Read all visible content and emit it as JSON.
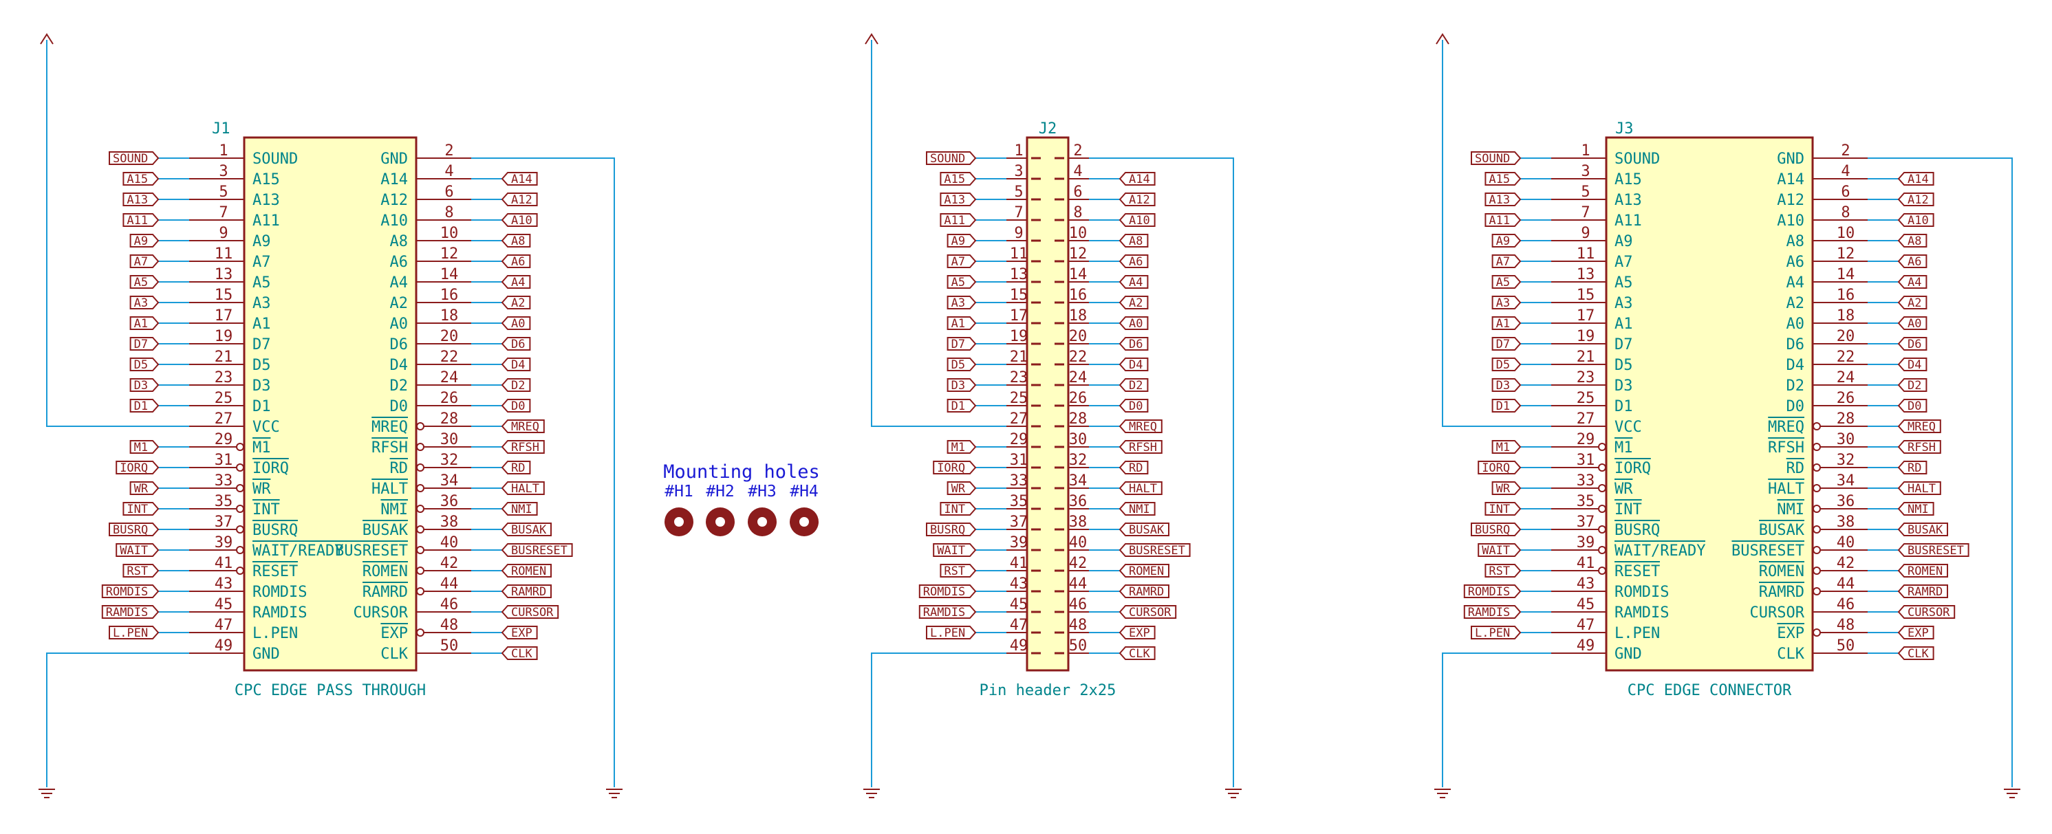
{
  "colors": {
    "wire": "#1a9bd7",
    "body_stroke": "#8b1c1c",
    "body_fill": "#ffffc2",
    "pin": "#8b1c1c",
    "ref_text": "#00848b",
    "value_text": "#00848b",
    "net_label": "#8b1c1c",
    "title_text": "#1a1ad4",
    "hole": "#8b1c1c",
    "background": "#ffffff"
  },
  "connectors": [
    {
      "ref": "J1",
      "value": "CPC EDGE PASS THROUGH",
      "style": "edge",
      "left_pins": [
        {
          "num": "1",
          "name": "SOUND",
          "net": "SOUND"
        },
        {
          "num": "3",
          "name": "A15",
          "net": "A15"
        },
        {
          "num": "5",
          "name": "A13",
          "net": "A13"
        },
        {
          "num": "7",
          "name": "A11",
          "net": "A11"
        },
        {
          "num": "9",
          "name": "A9",
          "net": "A9"
        },
        {
          "num": "11",
          "name": "A7",
          "net": "A7"
        },
        {
          "num": "13",
          "name": "A5",
          "net": "A5"
        },
        {
          "num": "15",
          "name": "A3",
          "net": "A3"
        },
        {
          "num": "17",
          "name": "A1",
          "net": "A1"
        },
        {
          "num": "19",
          "name": "D7",
          "net": "D7"
        },
        {
          "num": "21",
          "name": "D5",
          "net": "D5"
        },
        {
          "num": "23",
          "name": "D3",
          "net": "D3"
        },
        {
          "num": "25",
          "name": "D1",
          "net": "D1"
        },
        {
          "num": "27",
          "name": "VCC",
          "net": ""
        },
        {
          "num": "29",
          "name": "M1",
          "net": "M1",
          "inv": true
        },
        {
          "num": "31",
          "name": "IORQ",
          "net": "IORQ",
          "inv": true
        },
        {
          "num": "33",
          "name": "WR",
          "net": "WR",
          "inv": true
        },
        {
          "num": "35",
          "name": "INT",
          "net": "INT",
          "inv": true
        },
        {
          "num": "37",
          "name": "BUSRQ",
          "net": "BUSRQ",
          "inv": true
        },
        {
          "num": "39",
          "name": "WAIT/READY",
          "net": "WAIT",
          "inv": true
        },
        {
          "num": "41",
          "name": "RESET",
          "net": "RST",
          "inv": true
        },
        {
          "num": "43",
          "name": "ROMDIS",
          "net": "ROMDIS"
        },
        {
          "num": "45",
          "name": "RAMDIS",
          "net": "RAMDIS"
        },
        {
          "num": "47",
          "name": "L.PEN",
          "net": "L.PEN"
        },
        {
          "num": "49",
          "name": "GND",
          "net": ""
        }
      ],
      "right_pins": [
        {
          "num": "2",
          "name": "GND",
          "net": ""
        },
        {
          "num": "4",
          "name": "A14",
          "net": "A14"
        },
        {
          "num": "6",
          "name": "A12",
          "net": "A12"
        },
        {
          "num": "8",
          "name": "A10",
          "net": "A10"
        },
        {
          "num": "10",
          "name": "A8",
          "net": "A8"
        },
        {
          "num": "12",
          "name": "A6",
          "net": "A6"
        },
        {
          "num": "14",
          "name": "A4",
          "net": "A4"
        },
        {
          "num": "16",
          "name": "A2",
          "net": "A2"
        },
        {
          "num": "18",
          "name": "A0",
          "net": "A0"
        },
        {
          "num": "20",
          "name": "D6",
          "net": "D6"
        },
        {
          "num": "22",
          "name": "D4",
          "net": "D4"
        },
        {
          "num": "24",
          "name": "D2",
          "net": "D2"
        },
        {
          "num": "26",
          "name": "D0",
          "net": "D0"
        },
        {
          "num": "28",
          "name": "MREQ",
          "net": "MREQ",
          "inv": true
        },
        {
          "num": "30",
          "name": "RFSH",
          "net": "RFSH",
          "inv": true
        },
        {
          "num": "32",
          "name": "RD",
          "net": "RD",
          "inv": true
        },
        {
          "num": "34",
          "name": "HALT",
          "net": "HALT",
          "inv": true
        },
        {
          "num": "36",
          "name": "NMI",
          "net": "NMI",
          "inv": true
        },
        {
          "num": "38",
          "name": "BUSAK",
          "net": "BUSAK",
          "inv": true
        },
        {
          "num": "40",
          "name": "BUSRESET",
          "net": "BUSRESET",
          "inv": true
        },
        {
          "num": "42",
          "name": "ROMEN",
          "net": "ROMEN",
          "inv": true
        },
        {
          "num": "44",
          "name": "RAMRD",
          "net": "RAMRD",
          "inv": true
        },
        {
          "num": "46",
          "name": "CURSOR",
          "net": "CURSOR"
        },
        {
          "num": "48",
          "name": "EXP",
          "net": "EXP",
          "inv": true
        },
        {
          "num": "50",
          "name": "CLK",
          "net": "CLK"
        }
      ]
    },
    {
      "ref": "J2",
      "value": "Pin header 2x25",
      "style": "header",
      "left_pins": [
        {
          "num": "1",
          "name": "",
          "net": "SOUND"
        },
        {
          "num": "3",
          "name": "",
          "net": "A15"
        },
        {
          "num": "5",
          "name": "",
          "net": "A13"
        },
        {
          "num": "7",
          "name": "",
          "net": "A11"
        },
        {
          "num": "9",
          "name": "",
          "net": "A9"
        },
        {
          "num": "11",
          "name": "",
          "net": "A7"
        },
        {
          "num": "13",
          "name": "",
          "net": "A5"
        },
        {
          "num": "15",
          "name": "",
          "net": "A3"
        },
        {
          "num": "17",
          "name": "",
          "net": "A1"
        },
        {
          "num": "19",
          "name": "",
          "net": "D7"
        },
        {
          "num": "21",
          "name": "",
          "net": "D5"
        },
        {
          "num": "23",
          "name": "",
          "net": "D3"
        },
        {
          "num": "25",
          "name": "",
          "net": "D1"
        },
        {
          "num": "27",
          "name": "",
          "net": ""
        },
        {
          "num": "29",
          "name": "",
          "net": "M1"
        },
        {
          "num": "31",
          "name": "",
          "net": "IORQ"
        },
        {
          "num": "33",
          "name": "",
          "net": "WR"
        },
        {
          "num": "35",
          "name": "",
          "net": "INT"
        },
        {
          "num": "37",
          "name": "",
          "net": "BUSRQ"
        },
        {
          "num": "39",
          "name": "",
          "net": "WAIT"
        },
        {
          "num": "41",
          "name": "",
          "net": "RST"
        },
        {
          "num": "43",
          "name": "",
          "net": "ROMDIS"
        },
        {
          "num": "45",
          "name": "",
          "net": "RAMDIS"
        },
        {
          "num": "47",
          "name": "",
          "net": "L.PEN"
        },
        {
          "num": "49",
          "name": "",
          "net": ""
        }
      ],
      "right_pins": [
        {
          "num": "2",
          "name": "",
          "net": ""
        },
        {
          "num": "4",
          "name": "",
          "net": "A14"
        },
        {
          "num": "6",
          "name": "",
          "net": "A12"
        },
        {
          "num": "8",
          "name": "",
          "net": "A10"
        },
        {
          "num": "10",
          "name": "",
          "net": "A8"
        },
        {
          "num": "12",
          "name": "",
          "net": "A6"
        },
        {
          "num": "14",
          "name": "",
          "net": "A4"
        },
        {
          "num": "16",
          "name": "",
          "net": "A2"
        },
        {
          "num": "18",
          "name": "",
          "net": "A0"
        },
        {
          "num": "20",
          "name": "",
          "net": "D6"
        },
        {
          "num": "22",
          "name": "",
          "net": "D4"
        },
        {
          "num": "24",
          "name": "",
          "net": "D2"
        },
        {
          "num": "26",
          "name": "",
          "net": "D0"
        },
        {
          "num": "28",
          "name": "",
          "net": "MREQ"
        },
        {
          "num": "30",
          "name": "",
          "net": "RFSH"
        },
        {
          "num": "32",
          "name": "",
          "net": "RD"
        },
        {
          "num": "34",
          "name": "",
          "net": "HALT"
        },
        {
          "num": "36",
          "name": "",
          "net": "NMI"
        },
        {
          "num": "38",
          "name": "",
          "net": "BUSAK"
        },
        {
          "num": "40",
          "name": "",
          "net": "BUSRESET"
        },
        {
          "num": "42",
          "name": "",
          "net": "ROMEN"
        },
        {
          "num": "44",
          "name": "",
          "net": "RAMRD"
        },
        {
          "num": "46",
          "name": "",
          "net": "CURSOR"
        },
        {
          "num": "48",
          "name": "",
          "net": "EXP"
        },
        {
          "num": "50",
          "name": "",
          "net": "CLK"
        }
      ]
    },
    {
      "ref": "J3",
      "value": "CPC EDGE CONNECTOR",
      "style": "edge",
      "left_pins": [
        {
          "num": "1",
          "name": "SOUND",
          "net": "SOUND"
        },
        {
          "num": "3",
          "name": "A15",
          "net": "A15"
        },
        {
          "num": "5",
          "name": "A13",
          "net": "A13"
        },
        {
          "num": "7",
          "name": "A11",
          "net": "A11"
        },
        {
          "num": "9",
          "name": "A9",
          "net": "A9"
        },
        {
          "num": "11",
          "name": "A7",
          "net": "A7"
        },
        {
          "num": "13",
          "name": "A5",
          "net": "A5"
        },
        {
          "num": "15",
          "name": "A3",
          "net": "A3"
        },
        {
          "num": "17",
          "name": "A1",
          "net": "A1"
        },
        {
          "num": "19",
          "name": "D7",
          "net": "D7"
        },
        {
          "num": "21",
          "name": "D5",
          "net": "D5"
        },
        {
          "num": "23",
          "name": "D3",
          "net": "D3"
        },
        {
          "num": "25",
          "name": "D1",
          "net": "D1"
        },
        {
          "num": "27",
          "name": "VCC",
          "net": ""
        },
        {
          "num": "29",
          "name": "M1",
          "net": "M1",
          "inv": true
        },
        {
          "num": "31",
          "name": "IORQ",
          "net": "IORQ",
          "inv": true
        },
        {
          "num": "33",
          "name": "WR",
          "net": "WR",
          "inv": true
        },
        {
          "num": "35",
          "name": "INT",
          "net": "INT",
          "inv": true
        },
        {
          "num": "37",
          "name": "BUSRQ",
          "net": "BUSRQ",
          "inv": true
        },
        {
          "num": "39",
          "name": "WAIT/READY",
          "net": "WAIT",
          "inv": true
        },
        {
          "num": "41",
          "name": "RESET",
          "net": "RST",
          "inv": true
        },
        {
          "num": "43",
          "name": "ROMDIS",
          "net": "ROMDIS"
        },
        {
          "num": "45",
          "name": "RAMDIS",
          "net": "RAMDIS"
        },
        {
          "num": "47",
          "name": "L.PEN",
          "net": "L.PEN"
        },
        {
          "num": "49",
          "name": "GND",
          "net": ""
        }
      ],
      "right_pins": [
        {
          "num": "2",
          "name": "GND",
          "net": ""
        },
        {
          "num": "4",
          "name": "A14",
          "net": "A14"
        },
        {
          "num": "6",
          "name": "A12",
          "net": "A12"
        },
        {
          "num": "8",
          "name": "A10",
          "net": "A10"
        },
        {
          "num": "10",
          "name": "A8",
          "net": "A8"
        },
        {
          "num": "12",
          "name": "A6",
          "net": "A6"
        },
        {
          "num": "14",
          "name": "A4",
          "net": "A4"
        },
        {
          "num": "16",
          "name": "A2",
          "net": "A2"
        },
        {
          "num": "18",
          "name": "A0",
          "net": "A0"
        },
        {
          "num": "20",
          "name": "D6",
          "net": "D6"
        },
        {
          "num": "22",
          "name": "D4",
          "net": "D4"
        },
        {
          "num": "24",
          "name": "D2",
          "net": "D2"
        },
        {
          "num": "26",
          "name": "D0",
          "net": "D0"
        },
        {
          "num": "28",
          "name": "MREQ",
          "net": "MREQ",
          "inv": true
        },
        {
          "num": "30",
          "name": "RFSH",
          "net": "RFSH",
          "inv": true
        },
        {
          "num": "32",
          "name": "RD",
          "net": "RD",
          "inv": true
        },
        {
          "num": "34",
          "name": "HALT",
          "net": "HALT",
          "inv": true
        },
        {
          "num": "36",
          "name": "NMI",
          "net": "NMI",
          "inv": true
        },
        {
          "num": "38",
          "name": "BUSAK",
          "net": "BUSAK",
          "inv": true
        },
        {
          "num": "40",
          "name": "BUSRESET",
          "net": "BUSRESET",
          "inv": true
        },
        {
          "num": "42",
          "name": "ROMEN",
          "net": "ROMEN",
          "inv": true
        },
        {
          "num": "44",
          "name": "RAMRD",
          "net": "RAMRD",
          "inv": true
        },
        {
          "num": "46",
          "name": "CURSOR",
          "net": "CURSOR"
        },
        {
          "num": "48",
          "name": "EXP",
          "net": "EXP",
          "inv": true
        },
        {
          "num": "50",
          "name": "CLK",
          "net": "CLK"
        }
      ]
    }
  ],
  "mounting_holes": {
    "title": "Mounting holes",
    "labels": [
      "#H1",
      "#H2",
      "#H3",
      "#H4"
    ]
  }
}
